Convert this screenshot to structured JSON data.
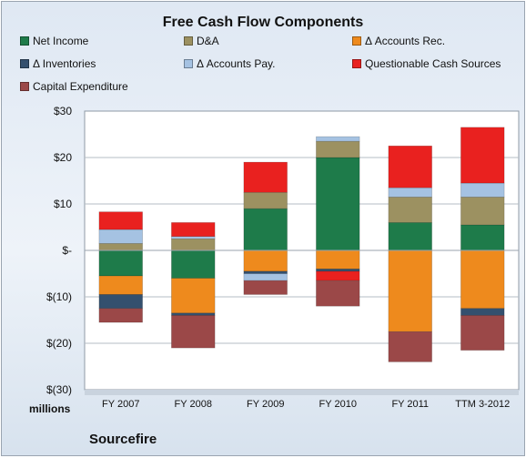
{
  "chart_data": {
    "type": "bar",
    "stacked": true,
    "title": "Free Cash Flow Components",
    "ylabel": "millions",
    "categories": [
      "FY 2007",
      "FY 2008",
      "FY 2009",
      "FY 2010",
      "FY 2011",
      "TTM 3-2012"
    ],
    "yticks": [
      "$30",
      "$20",
      "$10",
      "$-",
      "$(10)",
      "$(20)",
      "$(30)"
    ],
    "ylim": [
      -30,
      30
    ],
    "grid": true,
    "legend_position": "top",
    "series": [
      {
        "name": "Net Income",
        "color": "#1e7b4a",
        "values": [
          -5.5,
          -6.0,
          9.0,
          20.0,
          6.0,
          5.5
        ]
      },
      {
        "name": "D&A",
        "color": "#9c9161",
        "values": [
          1.5,
          2.5,
          3.5,
          3.5,
          5.5,
          6.0
        ]
      },
      {
        "name": "Δ Accounts Rec.",
        "color": "#ee8a1d",
        "values": [
          -4.0,
          -7.5,
          -4.5,
          -4.0,
          -17.5,
          -12.5
        ]
      },
      {
        "name": "Δ Inventories",
        "color": "#34506e",
        "values": [
          -3.0,
          -0.5,
          -0.5,
          -0.5,
          0.0,
          -1.5
        ]
      },
      {
        "name": "Δ Accounts Pay.",
        "color": "#a5c2e2",
        "values": [
          3.0,
          0.5,
          -1.5,
          1.0,
          2.0,
          3.0
        ]
      },
      {
        "name": "Questionable Cash Sources",
        "color": "#e9211f",
        "values": [
          3.8,
          3.0,
          6.5,
          -2.0,
          9.0,
          12.0
        ]
      },
      {
        "name": "Capital Expenditure",
        "color": "#9b4848",
        "values": [
          -3.0,
          -7.0,
          -3.0,
          -5.5,
          -6.5,
          -7.5
        ]
      }
    ]
  },
  "labels": {
    "units": "millions",
    "company": "Sourcefire"
  }
}
